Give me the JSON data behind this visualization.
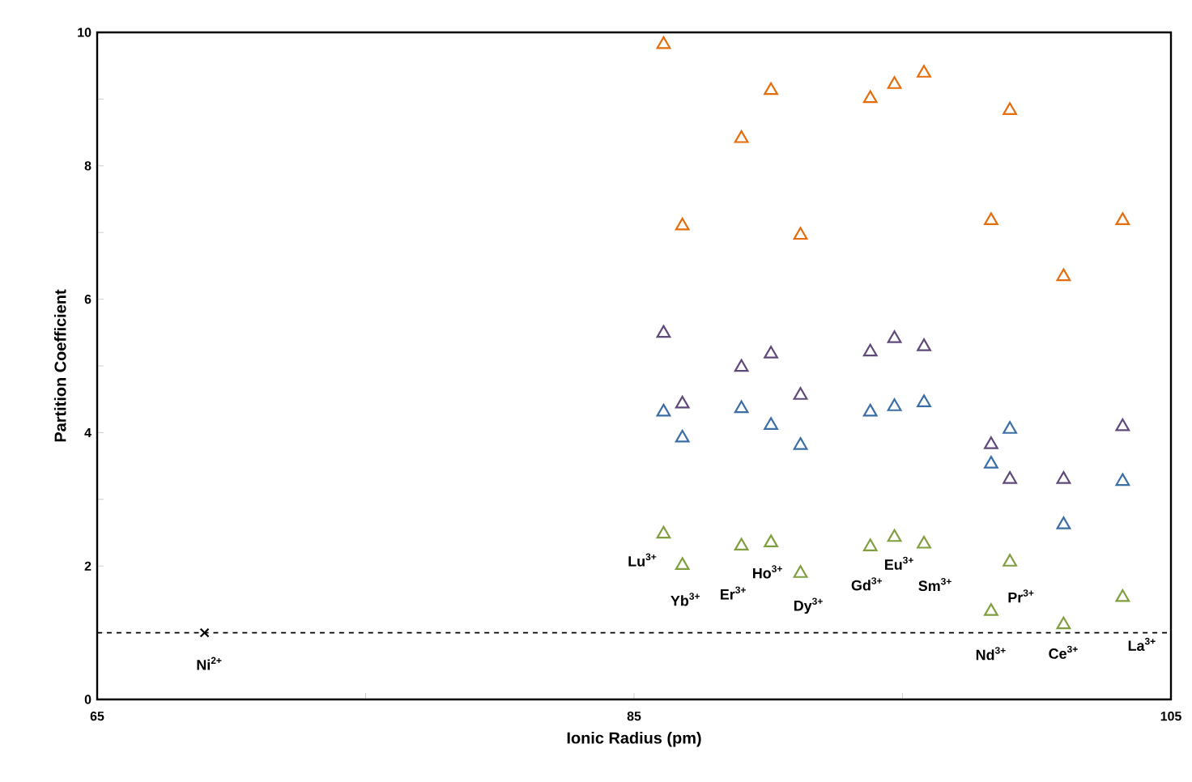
{
  "chart_data": {
    "type": "scatter",
    "xlabel": "Ionic Radius (pm)",
    "ylabel": "Partition Coefficient",
    "xlim": [
      65,
      105
    ],
    "ylim": [
      0,
      10
    ],
    "xticks": [
      65,
      {
        "value": 75,
        "label": null
      },
      85,
      {
        "value": 95,
        "label": null
      },
      105
    ],
    "yticks": [
      0,
      {
        "value": 1,
        "label": null
      },
      2,
      {
        "value": 3,
        "label": null
      },
      4,
      {
        "value": 5,
        "label": null
      },
      6,
      {
        "value": 7,
        "label": null
      },
      8,
      {
        "value": 9,
        "label": null
      },
      10
    ],
    "marker": "triangle",
    "series": [
      {
        "color": "#e46c0a",
        "x": [
          86.1,
          86.8,
          89.0,
          90.1,
          91.2,
          93.8,
          94.7,
          95.8,
          98.3,
          99.0,
          101.0,
          103.2
        ],
        "values": [
          9.82,
          7.1,
          8.41,
          9.13,
          6.96,
          9.01,
          9.22,
          9.39,
          7.18,
          8.83,
          6.34,
          7.18
        ]
      },
      {
        "color": "#5f497a",
        "x": [
          86.1,
          86.8,
          89.0,
          90.1,
          91.2,
          93.8,
          94.7,
          95.8,
          98.3,
          99.0,
          101.0,
          103.2
        ],
        "values": [
          5.49,
          4.43,
          4.98,
          5.18,
          4.56,
          5.21,
          5.41,
          5.29,
          3.82,
          3.3,
          3.3,
          4.09
        ]
      },
      {
        "color": "#3a6ea5",
        "x": [
          86.1,
          86.8,
          89.0,
          90.1,
          91.2,
          93.8,
          94.7,
          95.8,
          98.3,
          99.0,
          101.0,
          103.2
        ],
        "values": [
          4.31,
          3.92,
          4.36,
          4.11,
          3.81,
          4.31,
          4.39,
          4.45,
          3.53,
          4.05,
          2.62,
          3.27
        ]
      },
      {
        "color": "#7f9f3f",
        "x": [
          86.1,
          86.8,
          89.0,
          90.1,
          91.2,
          93.8,
          94.7,
          95.8,
          98.3,
          99.0,
          101.0,
          103.2
        ],
        "values": [
          2.48,
          2.01,
          2.3,
          2.35,
          1.89,
          2.29,
          2.43,
          2.33,
          1.32,
          2.06,
          1.12,
          1.53
        ]
      },
      {
        "color": "#000000",
        "marker": "cross",
        "x": [
          69
        ],
        "values": [
          1
        ]
      }
    ],
    "ref_lines": [
      {
        "axis": "y",
        "value": 1,
        "color": "#000000",
        "line_style": "dashed"
      }
    ],
    "annotations": [
      {
        "text": "Ni$^{2+}$",
        "x": 69,
        "y": 1
      },
      {
        "text": "Lu$^{3+}$",
        "x": 86.1,
        "y": 2.48
      },
      {
        "text": "Yb$^{3+}$",
        "x": 86.8,
        "y": 2.01
      },
      {
        "text": "Er$^{3+}$",
        "x": 89.0,
        "y": 2.3
      },
      {
        "text": "Ho$^{3+}$",
        "x": 90.1,
        "y": 2.35
      },
      {
        "text": "Dy$^{3+}$",
        "x": 91.2,
        "y": 1.89
      },
      {
        "text": "Gd$^{3+}$",
        "x": 93.8,
        "y": 2.29
      },
      {
        "text": "Eu$^{3+}$",
        "x": 94.7,
        "y": 2.43
      },
      {
        "text": "Sm$^{3+}$",
        "x": 95.8,
        "y": 2.33
      },
      {
        "text": "Pr$^{3+}$",
        "x": 99.0,
        "y": 2.06
      },
      {
        "text": "Nd$^{3+}$",
        "x": 98.3,
        "y": 1.32
      },
      {
        "text": "Ce$^{3+}$",
        "x": 101.0,
        "y": 1.12
      },
      {
        "text": "La$^{3+}$",
        "x": 103.2,
        "y": 1.53
      }
    ]
  }
}
